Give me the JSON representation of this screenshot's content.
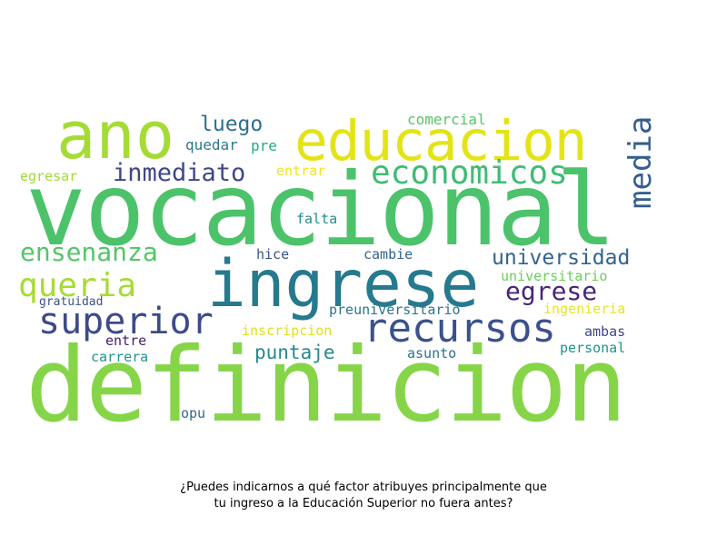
{
  "caption": {
    "line1": "¿Puedes indicarnos a qué factor atribuyes principalmente que",
    "line2": "tu ingreso a la Educación Superior no fuera antes?"
  },
  "words": [
    {
      "text": "vocacional",
      "color": "#4cc36a"
    },
    {
      "text": "definicion",
      "color": "#86d549"
    },
    {
      "text": "ingrese",
      "color": "#27798e"
    },
    {
      "text": "ano",
      "color": "#a5db36"
    },
    {
      "text": "educacion",
      "color": "#e3e418"
    },
    {
      "text": "recursos",
      "color": "#3b518b"
    },
    {
      "text": "superior",
      "color": "#3e4a89"
    },
    {
      "text": "economicos",
      "color": "#3fbc73"
    },
    {
      "text": "queria",
      "color": "#a8db34"
    },
    {
      "text": "ensenanza",
      "color": "#54c568"
    },
    {
      "text": "inmediato",
      "color": "#404688"
    },
    {
      "text": "media",
      "color": "#355f8d"
    },
    {
      "text": "egrese",
      "color": "#482576"
    },
    {
      "text": "universidad",
      "color": "#33638d"
    },
    {
      "text": "luego",
      "color": "#2c718e"
    },
    {
      "text": "puntaje",
      "color": "#23898e"
    },
    {
      "text": "comercial",
      "color": "#56c667"
    },
    {
      "text": "quedar",
      "color": "#2a788e"
    },
    {
      "text": "pre",
      "color": "#25ab82"
    },
    {
      "text": "entrar",
      "color": "#f1e51d"
    },
    {
      "text": "egresar",
      "color": "#a2da37"
    },
    {
      "text": "falta",
      "color": "#238a8d"
    },
    {
      "text": "hice",
      "color": "#3b528b"
    },
    {
      "text": "cambie",
      "color": "#33638d"
    },
    {
      "text": "universitario",
      "color": "#6ccd5a"
    },
    {
      "text": "preuniversitario",
      "color": "#2b748e"
    },
    {
      "text": "ingenieria",
      "color": "#eae51a"
    },
    {
      "text": "inscripcion",
      "color": "#dde318"
    },
    {
      "text": "gratuidad",
      "color": "#3b528b"
    },
    {
      "text": "ambas",
      "color": "#414487"
    },
    {
      "text": "entre",
      "color": "#481b6d"
    },
    {
      "text": "asunto",
      "color": "#2c728e"
    },
    {
      "text": "personal",
      "color": "#21918c"
    },
    {
      "text": "carrera",
      "color": "#1f958b"
    },
    {
      "text": "opu",
      "color": "#31688e"
    }
  ]
}
